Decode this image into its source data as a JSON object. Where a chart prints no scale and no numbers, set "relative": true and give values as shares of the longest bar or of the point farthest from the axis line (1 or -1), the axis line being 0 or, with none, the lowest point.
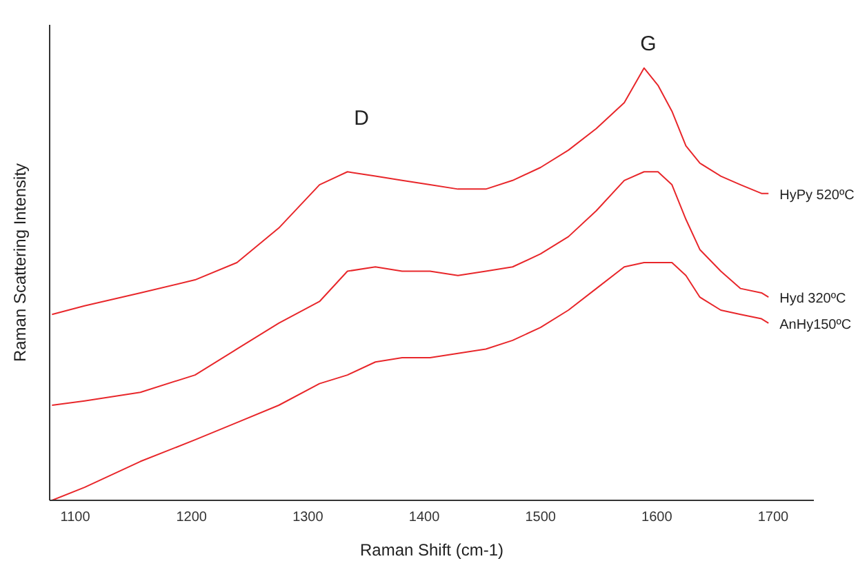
{
  "chart_data": {
    "type": "line",
    "xlabel": "Raman Shift (cm-1)",
    "ylabel": "Raman Scattering Intensity",
    "relative": true,
    "legend": false,
    "grid": false,
    "marker": "none",
    "line_style": "solid",
    "xlim": [
      1078,
      1735
    ],
    "xticks": [
      1100,
      1200,
      1300,
      1400,
      1500,
      1600,
      1700
    ],
    "x": [
      1080,
      1108,
      1156,
      1203,
      1239,
      1275,
      1310,
      1334,
      1358,
      1381,
      1405,
      1429,
      1453,
      1476,
      1500,
      1524,
      1548,
      1572,
      1589,
      1601,
      1613,
      1625,
      1637,
      1655,
      1672,
      1690,
      1696
    ],
    "series": [
      {
        "name": "HyPy 520ºC",
        "color": "#e8262a",
        "values": [
          0.43,
          0.45,
          0.48,
          0.51,
          0.55,
          0.63,
          0.73,
          0.76,
          0.75,
          0.74,
          0.73,
          0.72,
          0.72,
          0.74,
          0.77,
          0.81,
          0.86,
          0.92,
          1.0,
          0.96,
          0.9,
          0.82,
          0.78,
          0.75,
          0.73,
          0.71,
          0.71
        ]
      },
      {
        "name": "Hyd 320ºC",
        "color": "#e8262a",
        "values": [
          0.22,
          0.23,
          0.25,
          0.29,
          0.35,
          0.41,
          0.46,
          0.53,
          0.54,
          0.53,
          0.53,
          0.52,
          0.53,
          0.54,
          0.57,
          0.61,
          0.67,
          0.74,
          0.76,
          0.76,
          0.73,
          0.65,
          0.58,
          0.53,
          0.49,
          0.48,
          0.47
        ]
      },
      {
        "name": "AnHy150ºC",
        "color": "#e8262a",
        "values": [
          0.0,
          0.03,
          0.09,
          0.14,
          0.18,
          0.22,
          0.27,
          0.29,
          0.32,
          0.33,
          0.33,
          0.34,
          0.35,
          0.37,
          0.4,
          0.44,
          0.49,
          0.54,
          0.55,
          0.55,
          0.55,
          0.52,
          0.47,
          0.44,
          0.43,
          0.42,
          0.41
        ]
      }
    ],
    "annotations": [
      "D",
      "G"
    ]
  }
}
